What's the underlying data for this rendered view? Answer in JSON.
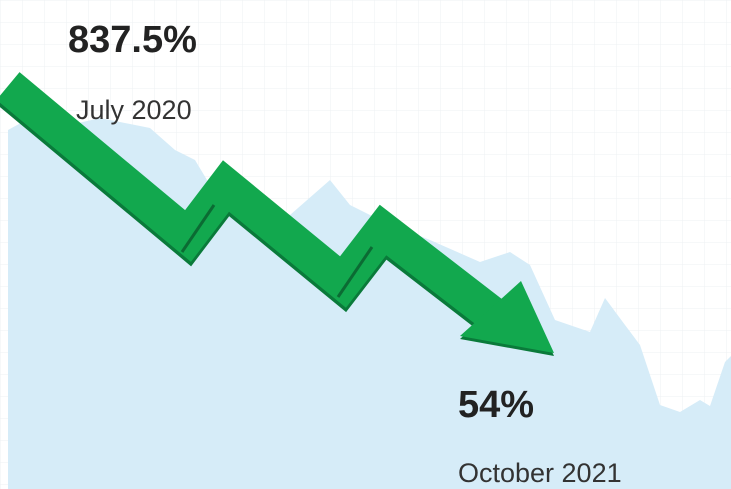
{
  "start": {
    "value": "837.5%",
    "date": "July 2020"
  },
  "end": {
    "value": "54%",
    "date": "October 2021"
  }
}
